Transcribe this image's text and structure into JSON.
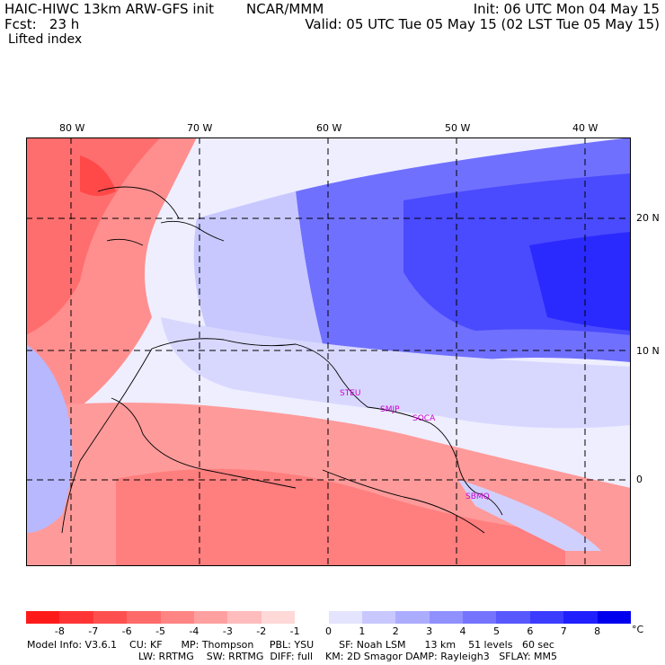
{
  "header": {
    "model": "HAIC-HIWC 13km ARW-GFS init",
    "org": "NCAR/MMM",
    "init": "Init: 06 UTC Mon 04 May 15",
    "fcst": "Fcst:   23 h",
    "valid": "Valid: 05 UTC Tue 05 May 15 (02 LST Tue 05 May 15)",
    "field": "Lifted index"
  },
  "map": {
    "lon_labels": [
      "80 W",
      "70 W",
      "60 W",
      "50 W",
      "40 W"
    ],
    "lat_labels": [
      "20 N",
      "10 N",
      "0"
    ],
    "stations": [
      "STEU",
      "SMJP",
      "SOCA",
      "SBMQ"
    ]
  },
  "colorbar": {
    "labels": [
      "-8",
      "-7",
      "-6",
      "-5",
      "-4",
      "-3",
      "-2",
      "-1",
      "0",
      "1",
      "2",
      "3",
      "4",
      "5",
      "6",
      "7",
      "8"
    ],
    "unit": "°C",
    "colors": [
      "#ff1a1a",
      "#ff3535",
      "#ff5050",
      "#ff6a6a",
      "#ff8585",
      "#ffa0a0",
      "#ffbcbc",
      "#ffd8d8",
      "#ffffff",
      "#e4e4ff",
      "#c8c8ff",
      "#acacff",
      "#9090ff",
      "#7474ff",
      "#5858ff",
      "#3c3cff",
      "#2020ff",
      "#0000ee"
    ]
  },
  "footer": {
    "line1": "Model Info: V3.6.1    CU: KF      MP: Thompson     PBL: YSU        SF: Noah LSM      13 km    51 levels   60 sec",
    "line2": "LW: RRTMG    SW: RRTMG  DIFF: full    KM: 2D Smagor DAMP: Rayleigh3   SFLAY: MM5"
  }
}
